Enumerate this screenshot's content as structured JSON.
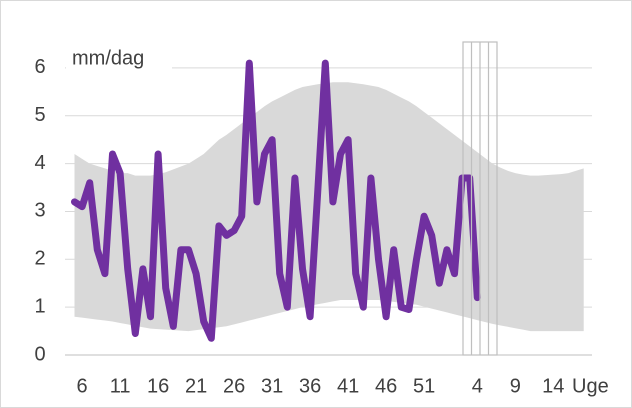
{
  "chart_data": {
    "type": "line",
    "y_label": "mm/dag",
    "x_label": "Uge",
    "categories": [
      null,
      "6",
      null,
      null,
      null,
      null,
      "11",
      null,
      null,
      null,
      null,
      "16",
      null,
      null,
      null,
      null,
      "21",
      null,
      null,
      null,
      null,
      "26",
      null,
      null,
      null,
      null,
      "31",
      null,
      null,
      null,
      null,
      "36",
      null,
      null,
      null,
      null,
      "41",
      null,
      null,
      null,
      null,
      "46",
      null,
      null,
      null,
      null,
      "51",
      null,
      null,
      null,
      null,
      null,
      null,
      "4",
      null,
      null,
      null,
      null,
      "9",
      null,
      null,
      null,
      null,
      "14",
      null,
      null,
      null,
      null
    ],
    "band": {
      "color": "#d9d9d9",
      "upper": [
        4.2,
        4.1,
        4.0,
        3.95,
        3.9,
        3.85,
        3.8,
        3.8,
        3.75,
        3.75,
        3.75,
        3.78,
        3.82,
        3.88,
        3.94,
        4.0,
        4.1,
        4.2,
        4.35,
        4.5,
        4.6,
        4.72,
        4.84,
        4.96,
        5.08,
        5.2,
        5.3,
        5.38,
        5.46,
        5.54,
        5.6,
        5.63,
        5.66,
        5.68,
        5.7,
        5.7,
        5.7,
        5.68,
        5.66,
        5.63,
        5.6,
        5.54,
        5.46,
        5.38,
        5.3,
        5.2,
        5.08,
        4.96,
        4.84,
        4.72,
        4.6,
        4.48,
        4.36,
        4.24,
        4.12,
        4.0,
        3.92,
        3.85,
        3.8,
        3.77,
        3.75,
        3.75,
        3.76,
        3.77,
        3.78,
        3.8,
        3.85,
        3.9
      ],
      "lower": [
        0.8,
        0.78,
        0.76,
        0.74,
        0.72,
        0.7,
        0.67,
        0.64,
        0.61,
        0.58,
        0.55,
        0.54,
        0.53,
        0.52,
        0.51,
        0.5,
        0.52,
        0.54,
        0.56,
        0.58,
        0.6,
        0.64,
        0.68,
        0.72,
        0.76,
        0.8,
        0.84,
        0.88,
        0.92,
        0.96,
        1.0,
        1.03,
        1.06,
        1.09,
        1.12,
        1.15,
        1.15,
        1.15,
        1.15,
        1.15,
        1.15,
        1.13,
        1.11,
        1.09,
        1.07,
        1.05,
        1.01,
        0.97,
        0.93,
        0.89,
        0.85,
        0.81,
        0.77,
        0.73,
        0.69,
        0.65,
        0.62,
        0.59,
        0.56,
        0.53,
        0.5,
        0.5,
        0.5,
        0.5,
        0.5,
        0.5,
        0.5,
        0.5
      ]
    },
    "series": [
      {
        "color": "#7030a0",
        "values": [
          3.2,
          3.1,
          3.6,
          2.2,
          1.7,
          4.2,
          3.8,
          1.8,
          0.45,
          1.8,
          0.8,
          4.2,
          1.4,
          0.6,
          2.2,
          2.2,
          1.7,
          0.7,
          0.35,
          2.7,
          2.5,
          2.6,
          2.9,
          6.1,
          3.2,
          4.2,
          4.5,
          1.7,
          1.0,
          3.7,
          1.8,
          0.8,
          3.4,
          6.1,
          3.2,
          4.2,
          4.5,
          1.7,
          1.0,
          3.7,
          2.0,
          0.8,
          2.2,
          1.0,
          0.95,
          2.0,
          2.9,
          2.5,
          1.5,
          2.2,
          1.7,
          3.7,
          3.7,
          1.2,
          null,
          null,
          null,
          null,
          null,
          null,
          null,
          null,
          null,
          null,
          null,
          null,
          null,
          null
        ]
      }
    ],
    "ylim": [
      0,
      6.5
    ],
    "yticks": [
      0,
      1,
      2,
      3,
      4,
      5,
      6
    ],
    "grid": true
  }
}
